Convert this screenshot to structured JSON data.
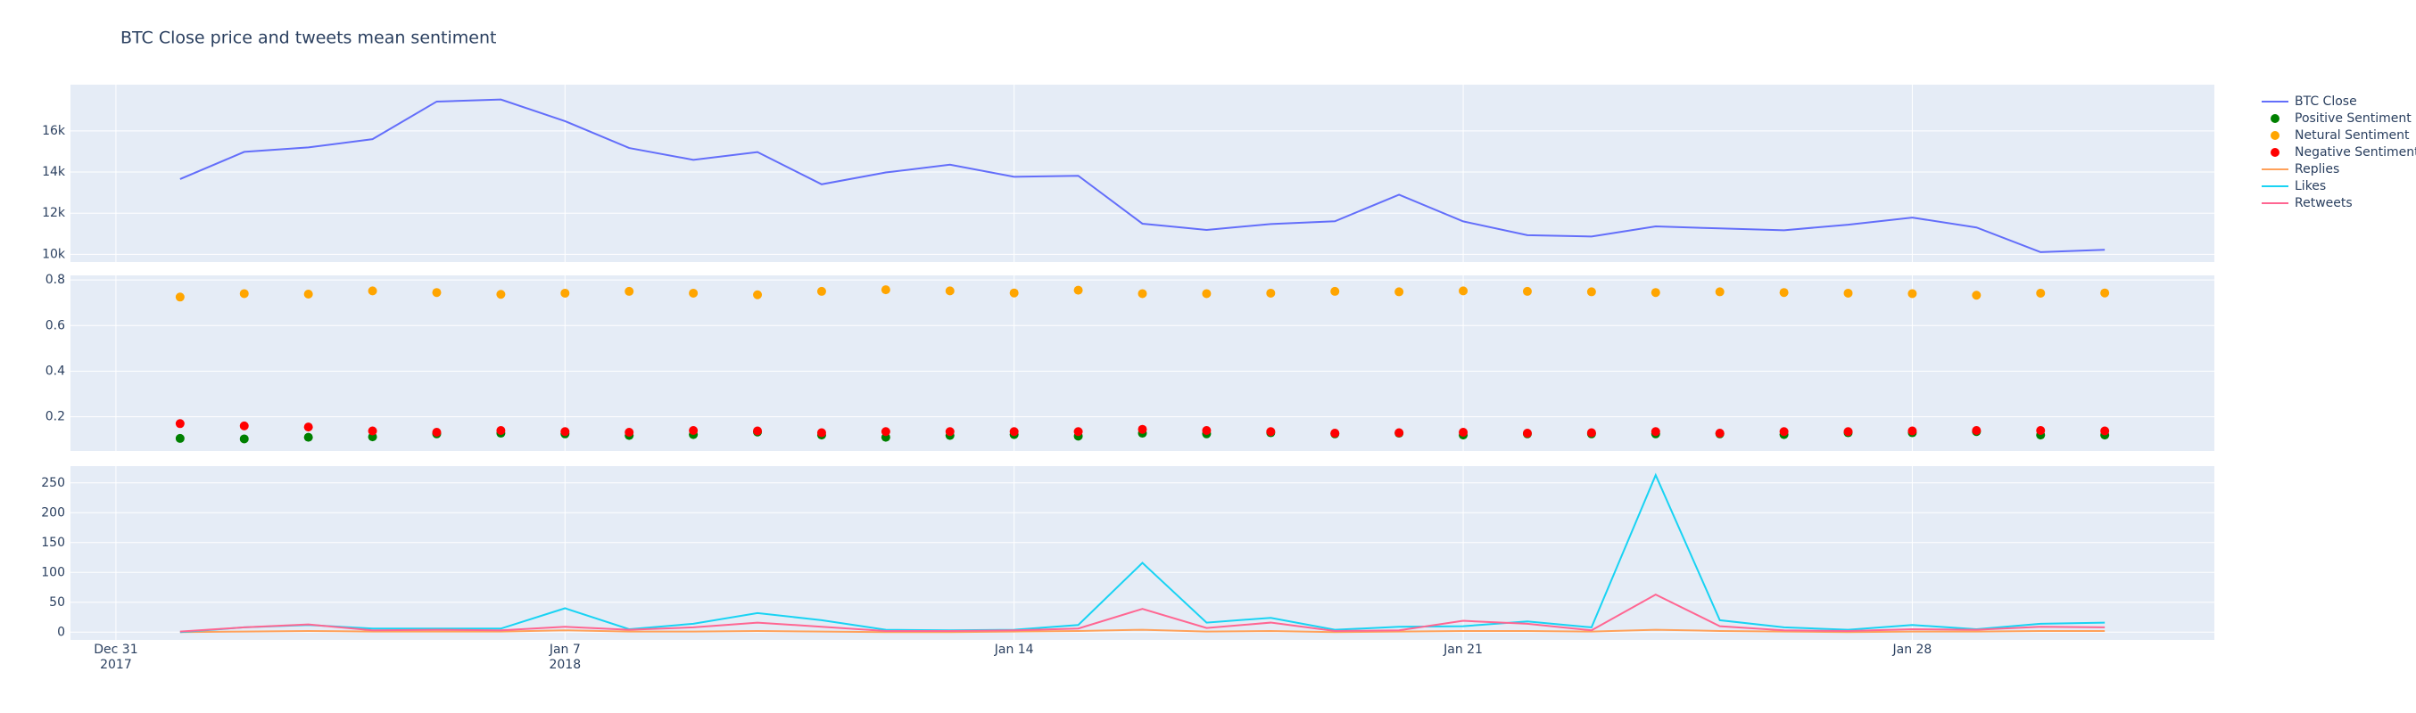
{
  "chart_data": [
    {
      "type": "line",
      "title": "BTC Close price and tweets mean sentiment",
      "x": [
        "2018-01-01",
        "2018-01-02",
        "2018-01-03",
        "2018-01-04",
        "2018-01-05",
        "2018-01-06",
        "2018-01-07",
        "2018-01-08",
        "2018-01-09",
        "2018-01-10",
        "2018-01-11",
        "2018-01-12",
        "2018-01-13",
        "2018-01-14",
        "2018-01-15",
        "2018-01-16",
        "2018-01-17",
        "2018-01-18",
        "2018-01-19",
        "2018-01-20",
        "2018-01-21",
        "2018-01-22",
        "2018-01-23",
        "2018-01-24",
        "2018-01-25",
        "2018-01-26",
        "2018-01-27",
        "2018-01-28",
        "2018-01-29",
        "2018-01-30",
        "2018-01-31"
      ],
      "ylim": [
        9625,
        18250
      ],
      "yticks": [
        {
          "value": 10000,
          "label": "10k"
        },
        {
          "value": 12000,
          "label": "12k"
        },
        {
          "value": 14000,
          "label": "14k"
        },
        {
          "value": 16000,
          "label": "16k"
        }
      ],
      "series": [
        {
          "name": "BTC Close",
          "color": "#636efa",
          "values": [
            13657,
            14982,
            15201,
            15599,
            17429,
            17527,
            16477,
            15170,
            14595,
            14973,
            13405,
            13980,
            14360,
            13772,
            13819,
            11490,
            11188,
            11474,
            11607,
            12899,
            11601,
            10931,
            10868,
            11359,
            11259,
            11171,
            11441,
            11787,
            11306,
            10106,
            10221
          ]
        }
      ]
    },
    {
      "type": "scatter",
      "x": [
        "2018-01-01",
        "2018-01-02",
        "2018-01-03",
        "2018-01-04",
        "2018-01-05",
        "2018-01-06",
        "2018-01-07",
        "2018-01-08",
        "2018-01-09",
        "2018-01-10",
        "2018-01-11",
        "2018-01-12",
        "2018-01-13",
        "2018-01-14",
        "2018-01-15",
        "2018-01-16",
        "2018-01-17",
        "2018-01-18",
        "2018-01-19",
        "2018-01-20",
        "2018-01-21",
        "2018-01-22",
        "2018-01-23",
        "2018-01-24",
        "2018-01-25",
        "2018-01-26",
        "2018-01-27",
        "2018-01-28",
        "2018-01-29",
        "2018-01-30",
        "2018-01-31"
      ],
      "ylim": [
        0.05,
        0.82
      ],
      "yticks": [
        0.2,
        0.4,
        0.6,
        0.8
      ],
      "series": [
        {
          "name": "Positive Sentiment",
          "color": "green",
          "values": [
            0.105,
            0.103,
            0.11,
            0.112,
            0.125,
            0.128,
            0.125,
            0.118,
            0.122,
            0.133,
            0.12,
            0.11,
            0.118,
            0.122,
            0.115,
            0.128,
            0.125,
            0.13,
            0.125,
            0.128,
            0.12,
            0.125,
            0.125,
            0.125,
            0.125,
            0.122,
            0.13,
            0.13,
            0.135,
            0.12,
            0.12
          ]
        },
        {
          "name": "Netural Sentiment",
          "color": "orange",
          "values": [
            0.725,
            0.74,
            0.738,
            0.752,
            0.745,
            0.737,
            0.742,
            0.75,
            0.742,
            0.735,
            0.75,
            0.757,
            0.752,
            0.743,
            0.755,
            0.74,
            0.74,
            0.742,
            0.75,
            0.748,
            0.752,
            0.75,
            0.748,
            0.745,
            0.748,
            0.745,
            0.742,
            0.74,
            0.733,
            0.742,
            0.743
          ]
        },
        {
          "name": "Negative Sentiment",
          "color": "red",
          "values": [
            0.17,
            0.16,
            0.155,
            0.138,
            0.132,
            0.14,
            0.135,
            0.132,
            0.14,
            0.138,
            0.13,
            0.135,
            0.135,
            0.135,
            0.135,
            0.145,
            0.14,
            0.135,
            0.128,
            0.13,
            0.132,
            0.128,
            0.13,
            0.135,
            0.128,
            0.135,
            0.135,
            0.138,
            0.14,
            0.14,
            0.138
          ]
        }
      ]
    },
    {
      "type": "line",
      "x": [
        "2018-01-01",
        "2018-01-02",
        "2018-01-03",
        "2018-01-04",
        "2018-01-05",
        "2018-01-06",
        "2018-01-07",
        "2018-01-08",
        "2018-01-09",
        "2018-01-10",
        "2018-01-11",
        "2018-01-12",
        "2018-01-13",
        "2018-01-14",
        "2018-01-15",
        "2018-01-16",
        "2018-01-17",
        "2018-01-18",
        "2018-01-19",
        "2018-01-20",
        "2018-01-21",
        "2018-01-22",
        "2018-01-23",
        "2018-01-24",
        "2018-01-25",
        "2018-01-26",
        "2018-01-27",
        "2018-01-28",
        "2018-01-29",
        "2018-01-30",
        "2018-01-31"
      ],
      "xlim": [
        "2017-12-30T07:00:00Z",
        "2018-02-01T17:00:00Z"
      ],
      "xticks": [
        {
          "value": "2017-12-31",
          "label": "Dec 31",
          "sublabel": "2017"
        },
        {
          "value": "2018-01-07",
          "label": "Jan 7",
          "sublabel": "2018"
        },
        {
          "value": "2018-01-14",
          "label": "Jan 14"
        },
        {
          "value": "2018-01-21",
          "label": "Jan 21"
        },
        {
          "value": "2018-01-28",
          "label": "Jan 28"
        }
      ],
      "ylim": [
        -13,
        278
      ],
      "yticks": [
        0,
        50,
        100,
        150,
        200,
        250
      ],
      "series": [
        {
          "name": "Replies",
          "color": "#ffa15a",
          "values": [
            0,
            1,
            2,
            1,
            1,
            1,
            3,
            1,
            1,
            2,
            1,
            0,
            0,
            1,
            2,
            4,
            1,
            2,
            0,
            1,
            2,
            2,
            1,
            4,
            2,
            1,
            0,
            1,
            1,
            2,
            2
          ]
        },
        {
          "name": "Likes",
          "color": "#19d3f3",
          "values": [
            0,
            8,
            12,
            6,
            6,
            6,
            40,
            5,
            14,
            32,
            20,
            4,
            3,
            4,
            12,
            116,
            16,
            24,
            4,
            9,
            10,
            18,
            8,
            263,
            20,
            8,
            4,
            12,
            5,
            14,
            16
          ]
        },
        {
          "name": "Retweets",
          "color": "#ff6692",
          "values": [
            1,
            8,
            13,
            3,
            4,
            3,
            9,
            4,
            8,
            16,
            9,
            2,
            2,
            3,
            6,
            39,
            7,
            16,
            2,
            3,
            19,
            14,
            3,
            63,
            10,
            3,
            2,
            5,
            4,
            9,
            8
          ]
        }
      ]
    }
  ]
}
